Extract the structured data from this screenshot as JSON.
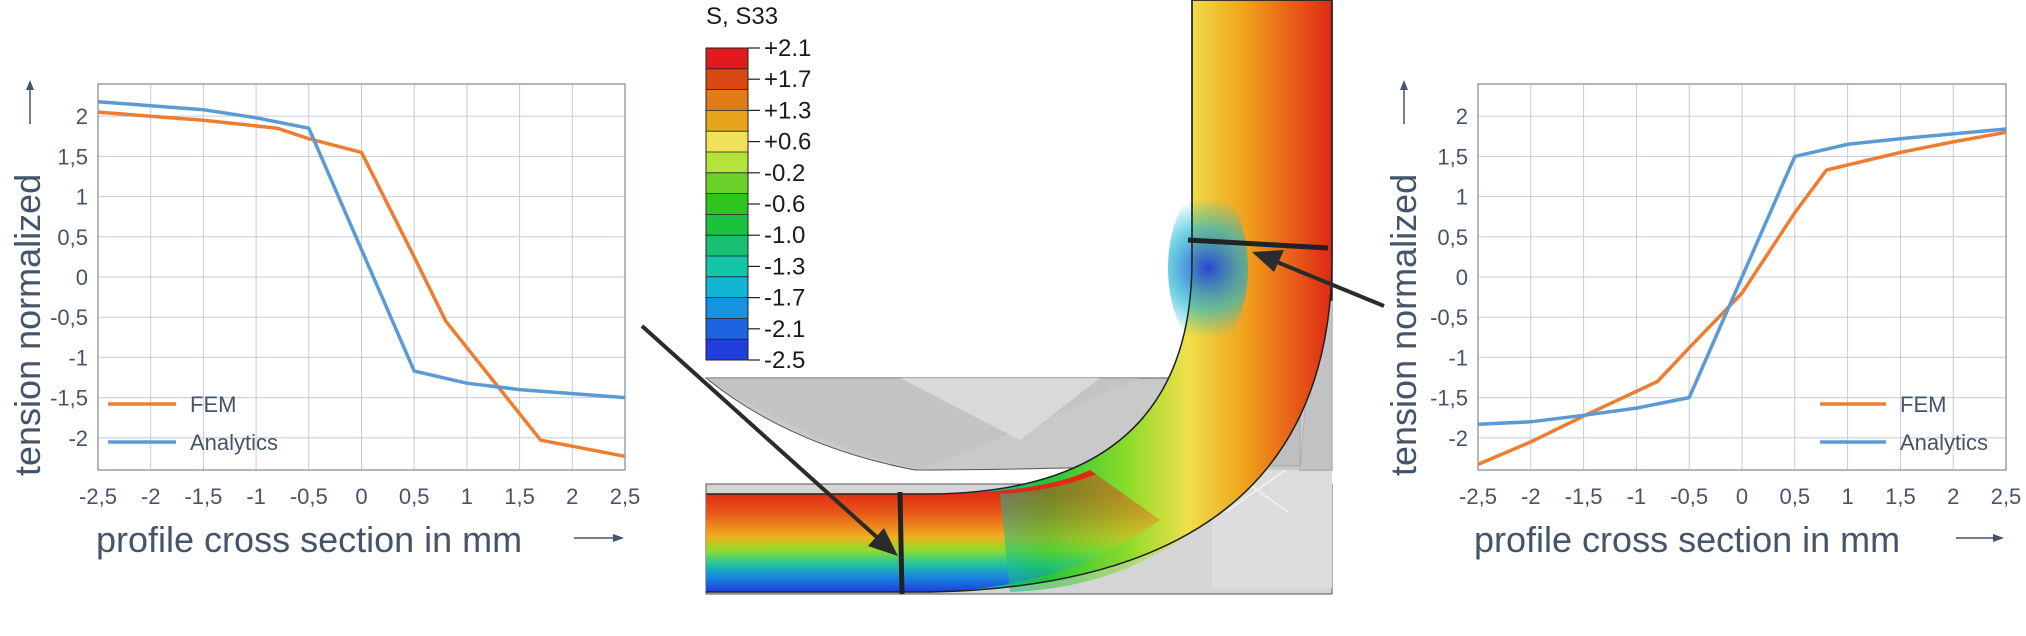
{
  "colors": {
    "fem": "#ed7d31",
    "analytics": "#5b9bd5",
    "text": "#44546a",
    "grid": "#c6cbd6"
  },
  "chart_data": [
    {
      "type": "line",
      "xlabel": "profile cross section in mm",
      "ylabel": "tension normalized",
      "x_ticks": [
        "-2,5",
        "-2",
        "-1,5",
        "-1",
        "-0,5",
        "0",
        "0,5",
        "1",
        "1,5",
        "2",
        "2,5"
      ],
      "y_ticks": [
        "2",
        "1,5",
        "1",
        "0,5",
        "0",
        "-0,5",
        "-1",
        "-1,5",
        "-2"
      ],
      "xlim": [
        -2.5,
        2.5
      ],
      "ylim": [
        -2.4,
        2.4
      ],
      "grid": true,
      "legend_position": "bottom-left",
      "series": [
        {
          "name": "FEM",
          "color": "#ed7d31",
          "x": [
            -2.5,
            -2.0,
            -1.5,
            -0.8,
            -0.5,
            0.0,
            0.5,
            0.8,
            1.7,
            2.5
          ],
          "y": [
            2.05,
            2.0,
            1.95,
            1.85,
            1.72,
            1.55,
            0.25,
            -0.55,
            -2.03,
            -2.23
          ]
        },
        {
          "name": "Analytics",
          "color": "#5b9bd5",
          "x": [
            -2.5,
            -2.0,
            -1.5,
            -1.0,
            -0.5,
            0.5,
            1.0,
            1.5,
            2.0,
            2.5
          ],
          "y": [
            2.18,
            2.13,
            2.08,
            1.98,
            1.85,
            -1.17,
            -1.32,
            -1.4,
            -1.45,
            -1.5
          ]
        }
      ]
    },
    {
      "type": "line",
      "xlabel": "profile cross section in mm",
      "ylabel": "tension normalized",
      "x_ticks": [
        "-2,5",
        "-2",
        "-1,5",
        "-1",
        "-0,5",
        "0",
        "0,5",
        "1",
        "1,5",
        "2",
        "2,5"
      ],
      "y_ticks": [
        "2",
        "1,5",
        "1",
        "0,5",
        "0",
        "-0,5",
        "-1",
        "-1,5",
        "-2"
      ],
      "xlim": [
        -2.5,
        2.5
      ],
      "ylim": [
        -2.4,
        2.4
      ],
      "grid": true,
      "legend_position": "bottom-right",
      "series": [
        {
          "name": "FEM",
          "color": "#ed7d31",
          "x": [
            -2.5,
            -2.0,
            -1.5,
            -0.8,
            -0.5,
            0.0,
            0.5,
            0.8,
            1.5,
            2.0,
            2.5
          ],
          "y": [
            -2.33,
            -2.05,
            -1.73,
            -1.3,
            -0.88,
            -0.2,
            0.8,
            1.33,
            1.55,
            1.68,
            1.8
          ]
        },
        {
          "name": "Analytics",
          "color": "#5b9bd5",
          "x": [
            -2.5,
            -2.0,
            -1.5,
            -1.0,
            -0.5,
            0.5,
            1.0,
            1.5,
            2.0,
            2.5
          ],
          "y": [
            -1.83,
            -1.8,
            -1.72,
            -1.63,
            -1.5,
            1.5,
            1.65,
            1.72,
            1.78,
            1.84
          ]
        }
      ]
    }
  ],
  "colorbar": {
    "title": "S, S33",
    "labels": [
      "+2.1",
      "+1.7",
      "+1.3",
      "+0.6",
      "-0.2",
      "-0.6",
      "-1.0",
      "-1.3",
      "-1.7",
      "-2.1",
      "-2.5"
    ],
    "colors": [
      "#e31a1c",
      "#d94812",
      "#e07b18",
      "#e8a51c",
      "#f1e05a",
      "#b4e43a",
      "#6cd02a",
      "#2ec61c",
      "#1bc23e",
      "#1ac072",
      "#12c6a8",
      "#12b6d2",
      "#1592e0",
      "#1c64e2",
      "#1f3edc"
    ]
  }
}
